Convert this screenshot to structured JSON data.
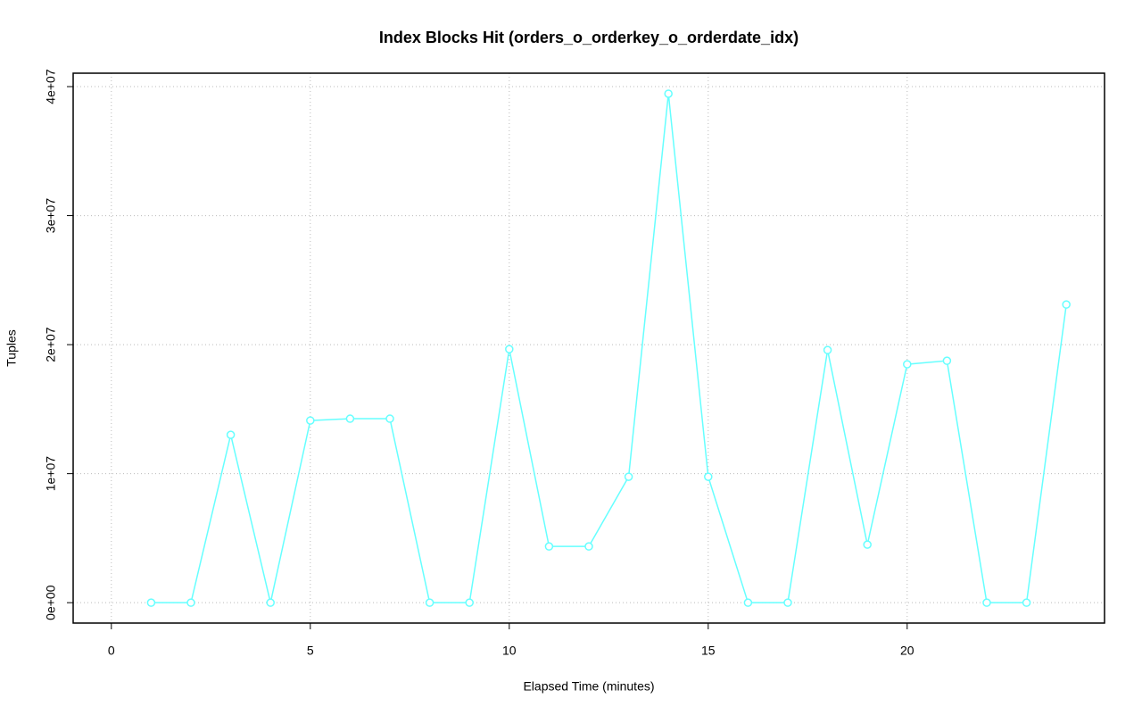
{
  "chart_data": {
    "type": "line",
    "title": "Index Blocks Hit (orders_o_orderkey_o_orderdate_idx)",
    "x_label": "Elapsed Time (minutes)",
    "y_label": "Tuples",
    "x": [
      1,
      2,
      3,
      4,
      5,
      6,
      7,
      8,
      9,
      10,
      11,
      12,
      13,
      14,
      15,
      16,
      17,
      18,
      19,
      20,
      21,
      22,
      23,
      24
    ],
    "values": [
      0,
      0,
      13010000,
      0,
      14120000,
      14260000,
      14260000,
      0,
      0,
      19650000,
      4360000,
      4360000,
      9760000,
      39450000,
      9760000,
      0,
      0,
      19580000,
      4500000,
      18480000,
      18750000,
      0,
      0,
      23110000
    ],
    "color": "#66ffff",
    "xlim": [
      -0.96,
      24.96
    ],
    "ylim": [
      -1580000,
      41040000
    ],
    "xticks": [
      0,
      5,
      10,
      15,
      20
    ],
    "yticks": [
      {
        "value": 0,
        "label": "0e+00"
      },
      {
        "value": 10000000,
        "label": "1e+07"
      },
      {
        "value": 20000000,
        "label": "2e+07"
      },
      {
        "value": 30000000,
        "label": "3e+07"
      },
      {
        "value": 40000000,
        "label": "4e+07"
      }
    ],
    "grid": true
  }
}
